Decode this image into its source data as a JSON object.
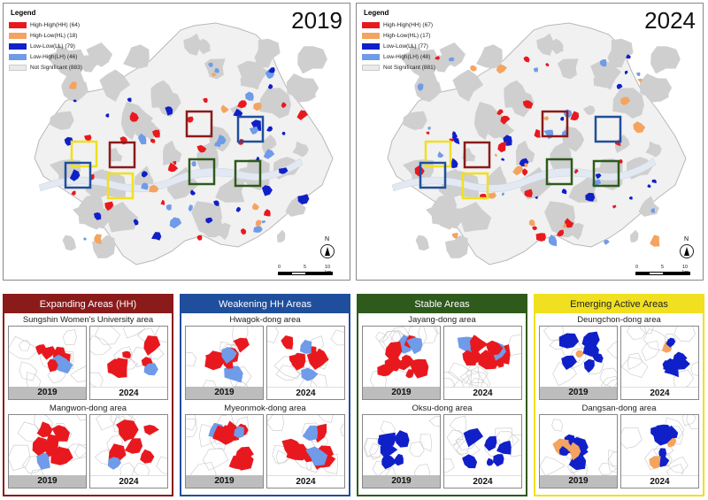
{
  "colors": {
    "hh": "#e8191e",
    "hl": "#f4a460",
    "ll": "#1020c8",
    "lh": "#6f9be8",
    "ns": "#eaeaea",
    "base": "#d0d0d0",
    "river": "#e8edf4",
    "box_red": "#8b1a1a",
    "box_blue": "#1f4f9c",
    "box_green": "#2e5a1c",
    "box_yellow": "#f0e020"
  },
  "maps": [
    {
      "year": "2019",
      "legend": {
        "title": "Legend",
        "items": [
          {
            "label": "High-High(HH) (64)",
            "color": "#e8191e"
          },
          {
            "label": "High-Low(HL) (18)",
            "color": "#f4a460"
          },
          {
            "label": "Low-Low(LL) (79)",
            "color": "#1020c8"
          },
          {
            "label": "Low-High(LH) (46)",
            "color": "#6f9be8"
          },
          {
            "label": "Not Significant (883)",
            "color": "#eaeaea"
          }
        ]
      },
      "north_label": "N",
      "scale_labels": [
        "0",
        "5",
        "10 km"
      ]
    },
    {
      "year": "2024",
      "legend": {
        "title": "Legend",
        "items": [
          {
            "label": "High-High(HH) (67)",
            "color": "#e8191e"
          },
          {
            "label": "High-Low(HL) (17)",
            "color": "#f4a460"
          },
          {
            "label": "Low-Low(LL) (77)",
            "color": "#1020c8"
          },
          {
            "label": "Low-High(LH) (48)",
            "color": "#6f9be8"
          },
          {
            "label": "Not Significant (881)",
            "color": "#eaeaea"
          }
        ]
      },
      "north_label": "N",
      "scale_labels": [
        "0",
        "5",
        "10 km"
      ]
    }
  ],
  "sections": [
    {
      "title": "Expanding Areas (HH)",
      "color": "#8b1a1a",
      "areas": [
        {
          "name": "Sungshin Women's University area",
          "years": [
            "2019",
            "2024"
          ]
        },
        {
          "name": "Mangwon-dong area",
          "years": [
            "2019",
            "2024"
          ]
        }
      ]
    },
    {
      "title": "Weakening HH Areas",
      "color": "#1f4f9c",
      "areas": [
        {
          "name": "Hwagok-dong area",
          "years": [
            "2019",
            "2024"
          ]
        },
        {
          "name": "Myeonmok-dong area",
          "years": [
            "2019",
            "2024"
          ]
        }
      ]
    },
    {
      "title": "Stable Areas",
      "color": "#2e5a1c",
      "areas": [
        {
          "name": "Jayang-dong area",
          "years": [
            "2019",
            "2024"
          ]
        },
        {
          "name": "Oksu-dong area",
          "years": [
            "2019",
            "2024"
          ]
        }
      ]
    },
    {
      "title": "Emerging Active Areas",
      "color": "#f0e020",
      "areas": [
        {
          "name": "Deungchon-dong area",
          "years": [
            "2019",
            "2024"
          ]
        },
        {
          "name": "Dangsan-dong area",
          "years": [
            "2019",
            "2024"
          ]
        }
      ]
    }
  ]
}
